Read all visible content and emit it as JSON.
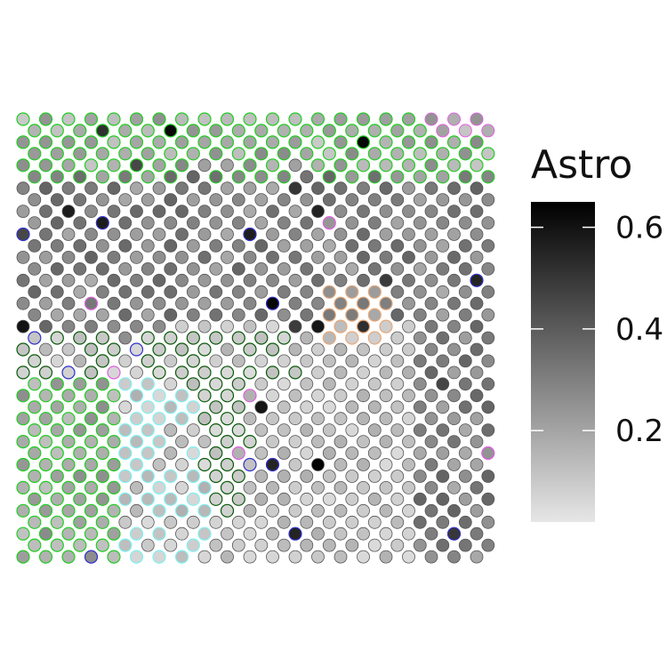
{
  "chart_data": {
    "type": "scatter",
    "subtype": "spatial hexagonal spot map",
    "color_variable": "Astro",
    "legend": {
      "title": "Astro",
      "position": "right",
      "scale": "continuous grayscale (light gray = low, black = high)",
      "range": [
        0.02,
        0.65
      ],
      "ticks": [
        0.2,
        0.4,
        0.6
      ],
      "tick_labels": [
        "0.2",
        "0.4",
        "0.6"
      ],
      "low_color": "#e6e6e6",
      "high_color": "#000000"
    },
    "grid": false,
    "axes": false,
    "spot_grid": {
      "columns": 22,
      "rows": 39
    },
    "outline_colors": {
      "green": "#22cc22",
      "dark_green": "#0a5a0a",
      "cyan": "#7ff0f0",
      "orange": "#e8a878",
      "magenta": "#e060e0",
      "blue": "#3030cc",
      "none": "#555555"
    }
  }
}
